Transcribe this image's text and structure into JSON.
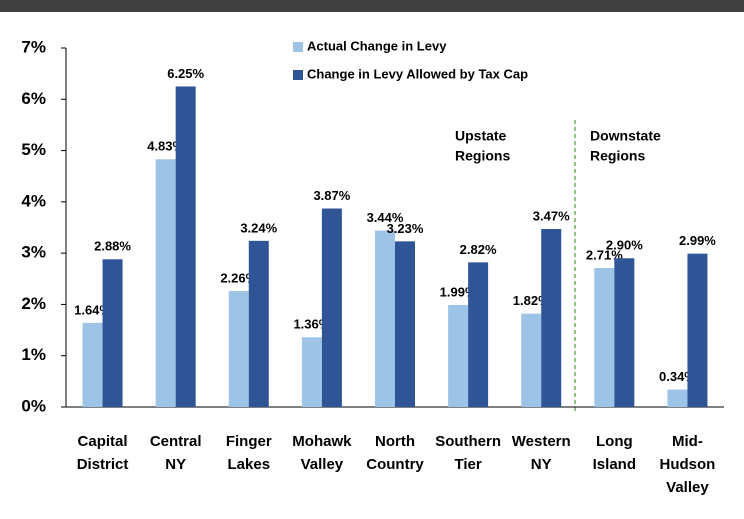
{
  "chart_data": {
    "type": "bar",
    "categories": [
      [
        "Capital",
        "District"
      ],
      [
        "Central",
        "NY"
      ],
      [
        "Finger",
        "Lakes"
      ],
      [
        "Mohawk",
        "Valley"
      ],
      [
        "North",
        "Country"
      ],
      [
        "Southern",
        "Tier"
      ],
      [
        "Western",
        "NY"
      ],
      [
        "Long",
        "Island"
      ],
      [
        "Mid-",
        "Hudson",
        "Valley"
      ]
    ],
    "series": [
      {
        "name": "Actual Change in Levy",
        "color": "#9dc3e6",
        "values": [
          1.64,
          4.83,
          2.26,
          1.36,
          3.44,
          1.99,
          1.82,
          2.71,
          0.34
        ],
        "value_labels": [
          "1.64%",
          "4.83%",
          "2.26%",
          "1.36%",
          "3.44%",
          "1.99%",
          "1.82%",
          "2.71%",
          "0.34%"
        ]
      },
      {
        "name": "Change in Levy Allowed by Tax Cap",
        "color": "#2f5597",
        "values": [
          2.88,
          6.25,
          3.24,
          3.87,
          3.23,
          2.82,
          3.47,
          2.9,
          2.99
        ],
        "value_labels": [
          "2.88%",
          "6.25%",
          "3.24%",
          "3.87%",
          "3.23%",
          "2.82%",
          "3.47%",
          "2.90%",
          "2.99%"
        ]
      }
    ],
    "ylim": [
      0,
      7
    ],
    "yticks": [
      {
        "value": 0,
        "label": "0%"
      },
      {
        "value": 1,
        "label": "1%"
      },
      {
        "value": 2,
        "label": "2%"
      },
      {
        "value": 3,
        "label": "3%"
      },
      {
        "value": 4,
        "label": "4%"
      },
      {
        "value": 5,
        "label": "5%"
      },
      {
        "value": 6,
        "label": "6%"
      },
      {
        "value": 7,
        "label": "7%"
      }
    ],
    "annotations": [
      [
        "Upstate",
        "Regions"
      ],
      [
        "Downstate",
        "Regions"
      ]
    ],
    "legend": "top"
  }
}
